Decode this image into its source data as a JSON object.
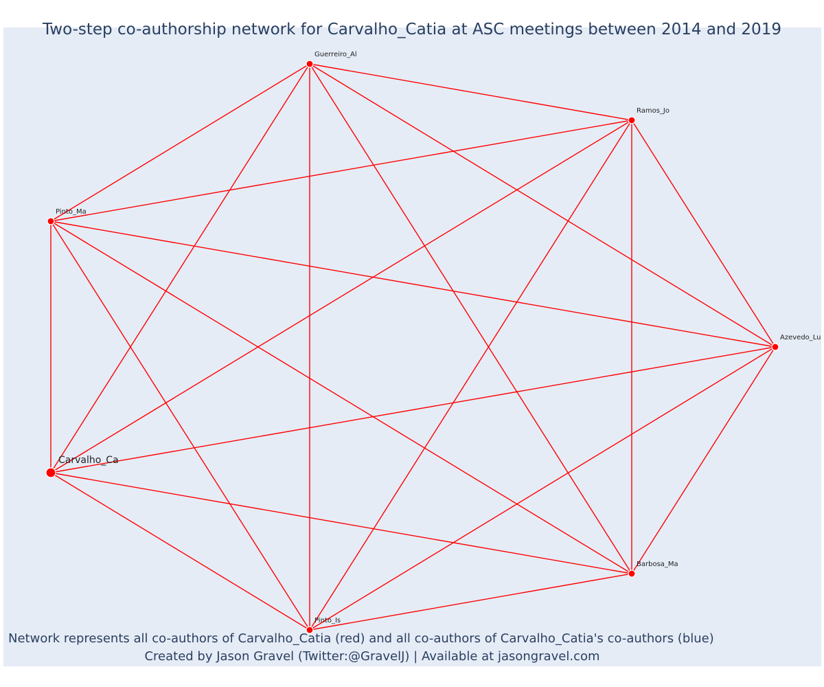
{
  "title": "Two-step co-authorship network for Carvalho_Catia at ASC meetings between 2014 and 2019",
  "footer": {
    "line1": "Network represents all co-authors of Carvalho_Catia (red) and all co-authors of Carvalho_Catia's co-authors (blue)",
    "line2": "Created by Jason Gravel (Twitter:@GravelJ) | Available at jasongravel.com"
  },
  "colors": {
    "edge": "#ff0000",
    "node": "#ff0000",
    "background": "#e5ecf6",
    "title": "#2a3f5f"
  },
  "network": {
    "nodes": [
      {
        "id": "guerreiro",
        "label": "Guerreiro_Al",
        "primary": false
      },
      {
        "id": "ramos",
        "label": "Ramos_Jo",
        "primary": false
      },
      {
        "id": "pinto_ma",
        "label": "Pinto_Ma",
        "primary": false
      },
      {
        "id": "azevedo",
        "label": "Azevedo_Lu",
        "primary": false
      },
      {
        "id": "carvalho",
        "label": "Carvalho_Ca",
        "primary": true
      },
      {
        "id": "barbosa",
        "label": "Barbosa_Ma",
        "primary": false
      },
      {
        "id": "pinto_is",
        "label": "Pinto_Is",
        "primary": false
      }
    ],
    "edges": [
      [
        "guerreiro",
        "ramos"
      ],
      [
        "guerreiro",
        "pinto_ma"
      ],
      [
        "guerreiro",
        "carvalho"
      ],
      [
        "guerreiro",
        "pinto_is"
      ],
      [
        "guerreiro",
        "barbosa"
      ],
      [
        "guerreiro",
        "azevedo"
      ],
      [
        "ramos",
        "pinto_ma"
      ],
      [
        "ramos",
        "carvalho"
      ],
      [
        "ramos",
        "pinto_is"
      ],
      [
        "ramos",
        "barbosa"
      ],
      [
        "ramos",
        "azevedo"
      ],
      [
        "pinto_ma",
        "carvalho"
      ],
      [
        "pinto_ma",
        "pinto_is"
      ],
      [
        "pinto_ma",
        "barbosa"
      ],
      [
        "pinto_ma",
        "azevedo"
      ],
      [
        "azevedo",
        "carvalho"
      ],
      [
        "azevedo",
        "pinto_is"
      ],
      [
        "azevedo",
        "barbosa"
      ],
      [
        "carvalho",
        "pinto_is"
      ],
      [
        "carvalho",
        "barbosa"
      ],
      [
        "barbosa",
        "pinto_is"
      ]
    ]
  }
}
